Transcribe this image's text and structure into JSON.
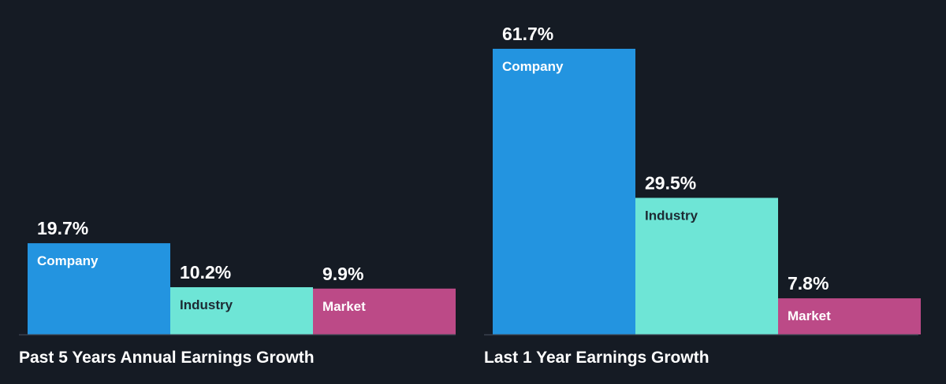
{
  "colors": {
    "background": "#151b24",
    "company": "#2394e0",
    "industry": "#6ee5d6",
    "market": "#bc4a87",
    "baseline": "#3a424f",
    "text_light": "#ffffff",
    "text_dark": "#1d2a33"
  },
  "chart_data": [
    {
      "type": "bar",
      "title": "Past 5 Years Annual Earnings Growth",
      "categories": [
        "Company",
        "Industry",
        "Market"
      ],
      "values": [
        19.7,
        10.2,
        9.9
      ],
      "value_labels": [
        "19.7%",
        "10.2%",
        "9.9%"
      ],
      "unit": "%",
      "ylim": [
        0,
        61.7
      ],
      "grid": false,
      "legend": "none"
    },
    {
      "type": "bar",
      "title": "Last 1 Year Earnings Growth",
      "categories": [
        "Company",
        "Industry",
        "Market"
      ],
      "values": [
        61.7,
        29.5,
        7.8
      ],
      "value_labels": [
        "61.7%",
        "29.5%",
        "7.8%"
      ],
      "unit": "%",
      "ylim": [
        0,
        61.7
      ],
      "grid": false,
      "legend": "none"
    }
  ]
}
